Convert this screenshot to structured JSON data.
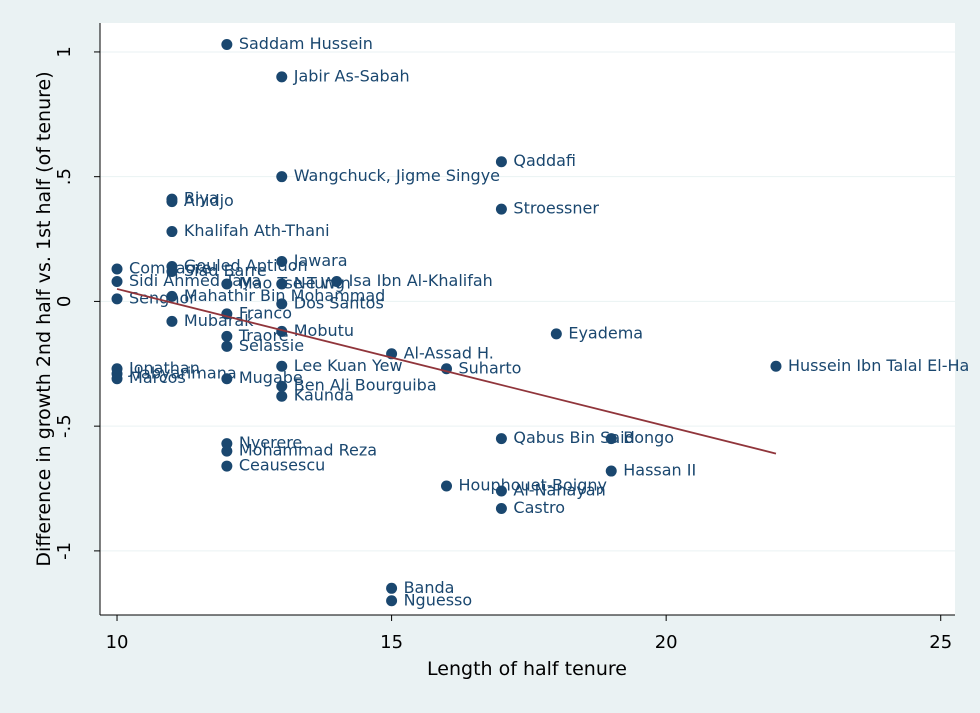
{
  "chart_data": {
    "type": "scatter",
    "x_label": "Length of half tenure",
    "y_label": "Difference in growth 2nd half vs. 1st half (of tenure)",
    "labels": [
      "Saddam Hussein",
      "Jabir As-Sabah",
      "Qaddafi",
      "Wangchuck, Jigme Singye",
      "Stroessner",
      "Biya",
      "Ahidjo",
      "Khalifah Ath-Thani",
      "Jawara",
      "Compaore",
      "Siad Barre",
      "Gouled Aptidon",
      "Isa Ibn Al-Khalifah",
      "Sidi Ahmed Taya",
      "Mao Tse-Tung",
      "Ne Win",
      "Senghor",
      "Mahathir Bin Mohammad",
      "Dos Santos",
      "Franco",
      "Mubarak",
      "Mobutu",
      "Traore",
      "Eyadema",
      "Selassie",
      "Al-Assad H.",
      "Lee Kuan Yew",
      "Hussein Ibn Talal El-Ha",
      "Suharto",
      "Jonathan",
      "Habyarimana",
      "Marcos",
      "Mugabe",
      "Ben Ali Bourguiba",
      "Kaunda",
      "Nyerere",
      "Mohammad Reza",
      "Qabus Bin Said",
      "Bongo",
      "Ceausescu",
      "Hassan II",
      "Houphouet-Boigny",
      "Al-Nahayan",
      "Castro",
      "Banda",
      "Nguesso"
    ],
    "x": [
      12,
      13,
      17,
      13,
      17,
      11,
      11,
      11,
      13,
      10,
      11,
      11,
      14,
      10,
      12,
      13,
      10,
      11,
      13,
      12,
      11,
      13,
      12,
      18,
      12,
      15,
      13,
      22,
      16,
      10,
      10,
      10,
      12,
      13,
      13,
      12,
      12,
      17,
      19,
      12,
      19,
      16,
      17,
      17,
      15,
      15
    ],
    "values": [
      1.03,
      0.9,
      0.56,
      0.5,
      0.37,
      0.41,
      0.4,
      0.28,
      0.16,
      0.13,
      0.12,
      0.14,
      0.08,
      0.08,
      0.07,
      0.07,
      0.01,
      0.02,
      -0.01,
      -0.05,
      -0.08,
      -0.12,
      -0.14,
      -0.13,
      -0.18,
      -0.21,
      -0.26,
      -0.26,
      -0.27,
      -0.27,
      -0.29,
      -0.31,
      -0.31,
      -0.34,
      -0.38,
      -0.57,
      -0.6,
      -0.55,
      -0.55,
      -0.66,
      -0.68,
      -0.74,
      -0.76,
      -0.83,
      -1.15,
      -1.2
    ],
    "marker_color": "#1a476f",
    "fit": {
      "x": [
        10,
        22
      ],
      "y": [
        0.05,
        -0.61
      ],
      "color": "#90353b"
    },
    "xlim": [
      9.69,
      25.26
    ],
    "ylim": [
      -1.257,
      1.116
    ],
    "xticks": [
      10,
      15,
      20,
      25
    ],
    "yticks": [
      {
        "value": -1,
        "label": "-1"
      },
      {
        "value": -0.5,
        "label": "-.5"
      },
      {
        "value": 0,
        "label": "0"
      },
      {
        "value": 0.5,
        "label": ".5"
      },
      {
        "value": 1,
        "label": "1"
      }
    ],
    "grid": true
  }
}
